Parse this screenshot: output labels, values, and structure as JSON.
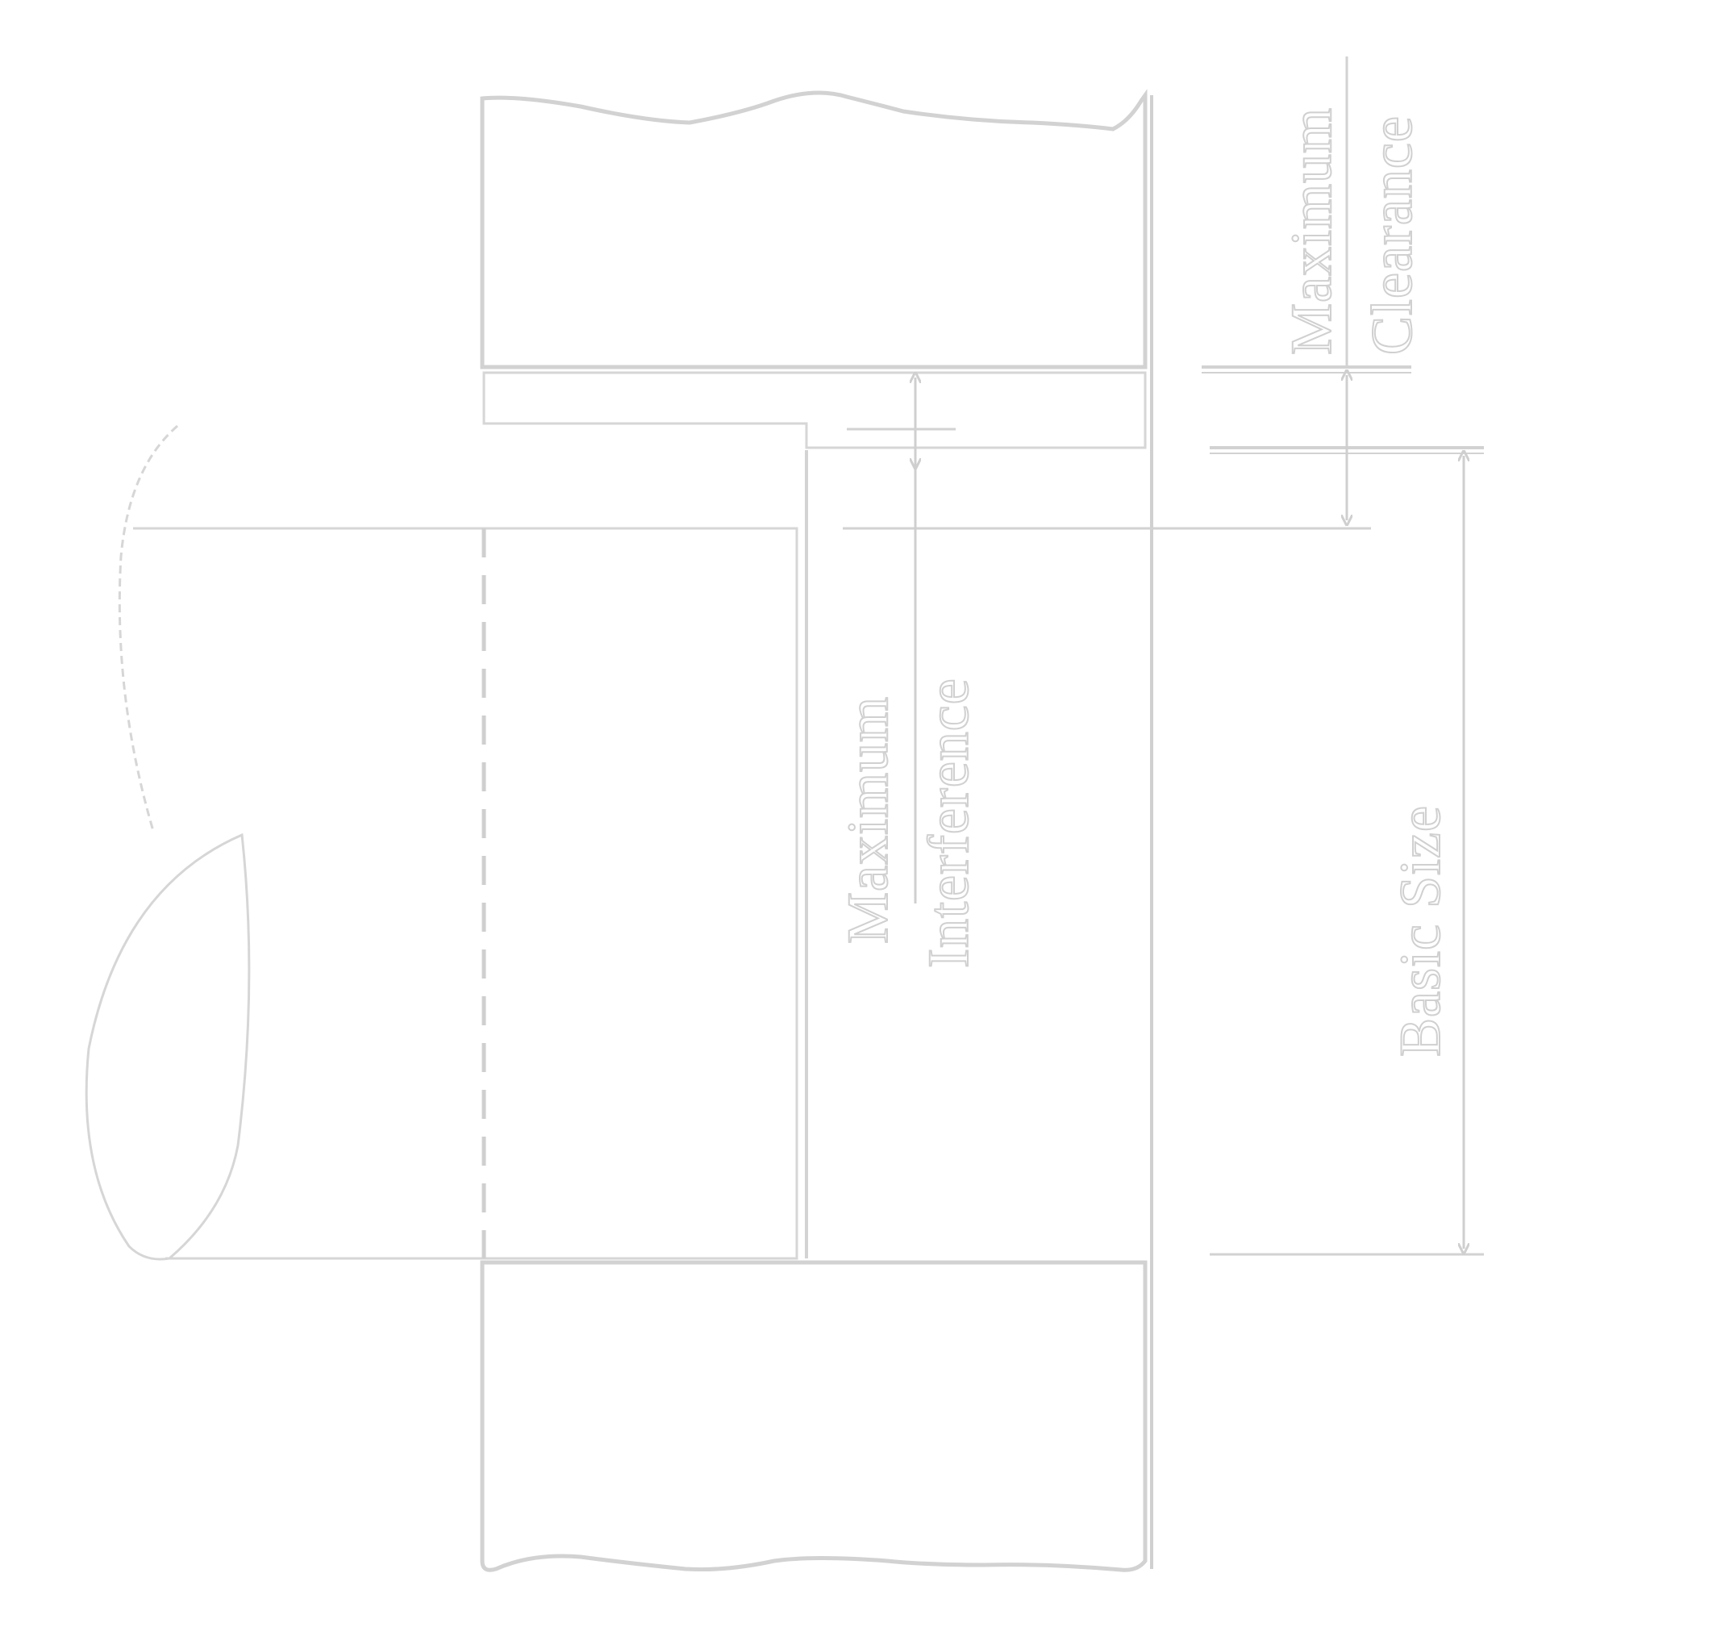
{
  "labels": {
    "max_clearance_line1": "Maximum",
    "max_clearance_line2": "Clearance",
    "max_interference_line1": "Maximum",
    "max_interference_line2": "Interference",
    "basic_size": "Basic Size"
  },
  "colors": {
    "line": "#d2d2d2",
    "background": "#ffffff"
  }
}
